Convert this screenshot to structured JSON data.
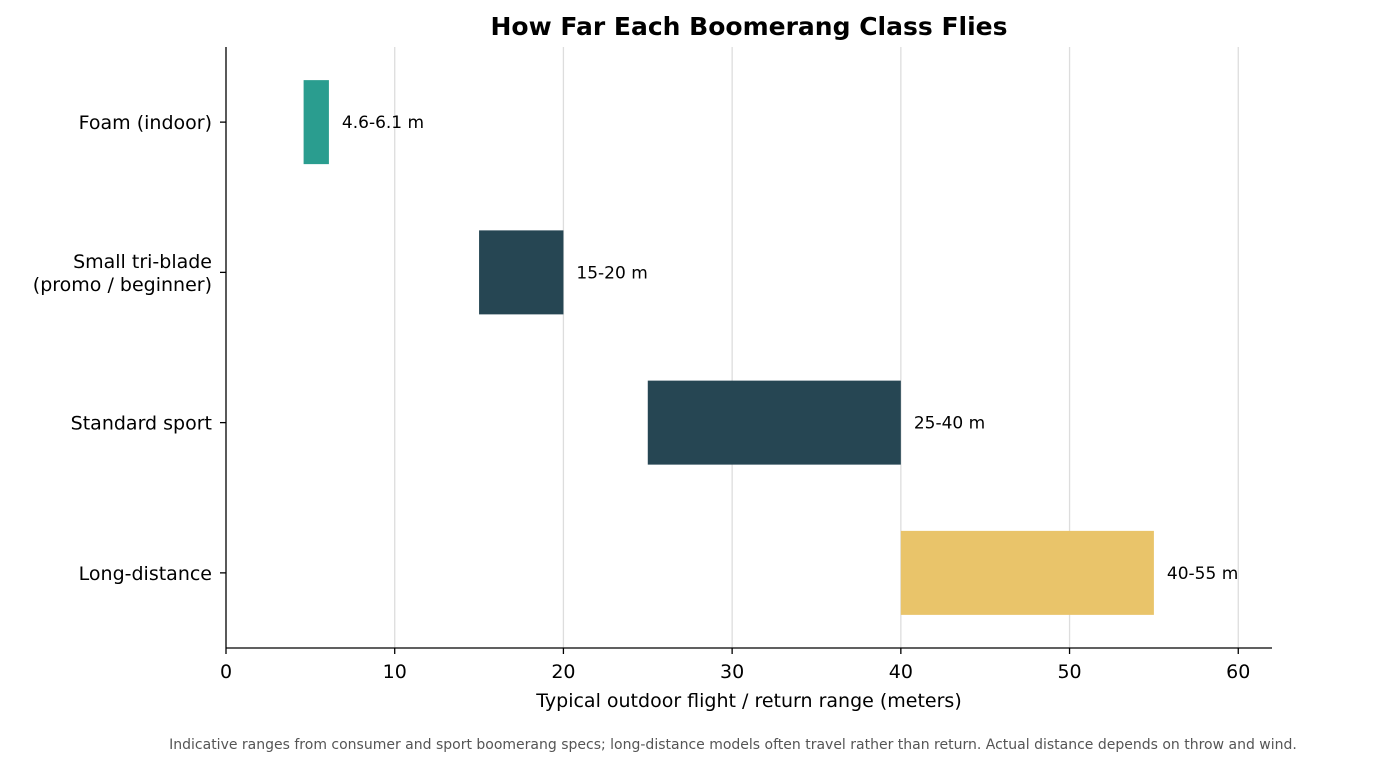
{
  "chart_data": {
    "type": "bar",
    "orientation": "horizontal-range",
    "title": "How Far Each Boomerang Class Flies",
    "xlabel": "Typical outdoor flight / return range (meters)",
    "ylabel": "",
    "xlim": [
      0,
      62
    ],
    "xticks": [
      0,
      10,
      20,
      30,
      40,
      50,
      60
    ],
    "grid": "x",
    "categories": [
      [
        "Foam (indoor)"
      ],
      [
        "Small tri-blade",
        "(promo / beginner)"
      ],
      [
        "Standard sport"
      ],
      [
        "Long-distance"
      ]
    ],
    "ranges": [
      {
        "start": 4.6,
        "end": 6.1,
        "label": "4.6-6.1 m",
        "color": "#2a9d8f"
      },
      {
        "start": 15,
        "end": 20,
        "label": "15-20 m",
        "color": "#264653"
      },
      {
        "start": 25,
        "end": 40,
        "label": "25-40 m",
        "color": "#264653"
      },
      {
        "start": 40,
        "end": 55,
        "label": "40-55 m",
        "color": "#e9c46a"
      }
    ]
  },
  "footnote": "Indicative ranges from consumer and sport boomerang specs; long-distance models often travel rather than return. Actual distance depends on throw and wind."
}
